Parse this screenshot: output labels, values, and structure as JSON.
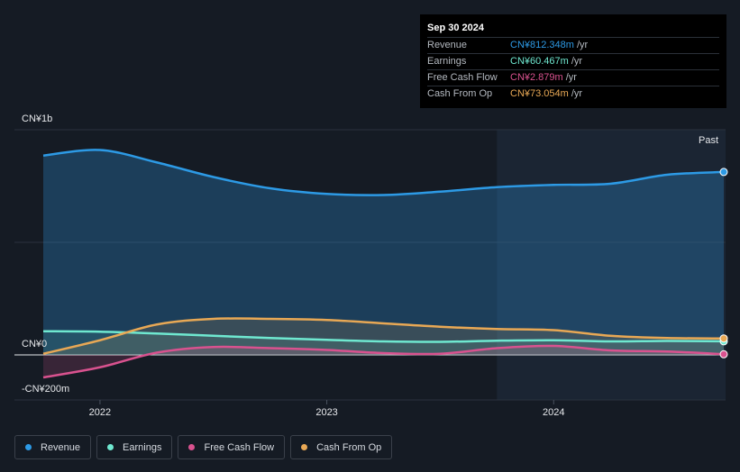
{
  "tooltip": {
    "date": "Sep 30 2024",
    "rows": [
      {
        "label": "Revenue",
        "value": "CN¥812.348m",
        "unit": "/yr",
        "color": "#2d9ae5"
      },
      {
        "label": "Earnings",
        "value": "CN¥60.467m",
        "unit": "/yr",
        "color": "#6fe8d0"
      },
      {
        "label": "Free Cash Flow",
        "value": "CN¥2.879m",
        "unit": "/yr",
        "color": "#d9528f"
      },
      {
        "label": "Cash From Op",
        "value": "CN¥73.054m",
        "unit": "/yr",
        "color": "#e8a855"
      }
    ]
  },
  "axis": {
    "y_top": "CN¥1b",
    "y_zero": "CN¥0",
    "y_bottom": "-CN¥200m",
    "past": "Past"
  },
  "legend": [
    {
      "label": "Revenue",
      "color": "#2d9ae5"
    },
    {
      "label": "Earnings",
      "color": "#6fe8d0"
    },
    {
      "label": "Free Cash Flow",
      "color": "#d9528f"
    },
    {
      "label": "Cash From Op",
      "color": "#e8a855"
    }
  ],
  "chart_data": {
    "type": "line",
    "xlabel": "",
    "ylabel": "",
    "x_ticks": [
      "2022",
      "2023",
      "2024"
    ],
    "ylim": [
      -200,
      1000
    ],
    "y_unit": "CN¥m",
    "past_region_start": 2023.75,
    "series": [
      {
        "name": "Revenue",
        "color": "#2d9ae5",
        "x": [
          2021.75,
          2022.0,
          2022.25,
          2022.5,
          2022.75,
          2023.0,
          2023.25,
          2023.5,
          2023.75,
          2024.0,
          2024.25,
          2024.5,
          2024.75
        ],
        "y": [
          885,
          910,
          855,
          790,
          740,
          715,
          710,
          725,
          745,
          755,
          760,
          800,
          812.348
        ]
      },
      {
        "name": "Earnings",
        "color": "#6fe8d0",
        "x": [
          2021.75,
          2022.0,
          2022.25,
          2022.5,
          2022.75,
          2023.0,
          2023.25,
          2023.5,
          2023.75,
          2024.0,
          2024.25,
          2024.5,
          2024.75
        ],
        "y": [
          105,
          103,
          95,
          85,
          75,
          67,
          60,
          58,
          63,
          65,
          60,
          62,
          60.467
        ]
      },
      {
        "name": "Free Cash Flow",
        "color": "#d9528f",
        "x": [
          2021.75,
          2022.0,
          2022.25,
          2022.5,
          2022.75,
          2023.0,
          2023.25,
          2023.5,
          2023.75,
          2024.0,
          2024.25,
          2024.5,
          2024.75
        ],
        "y": [
          -100,
          -55,
          10,
          35,
          30,
          22,
          8,
          5,
          30,
          40,
          20,
          15,
          2.879
        ]
      },
      {
        "name": "Cash From Op",
        "color": "#e8a855",
        "x": [
          2021.75,
          2022.0,
          2022.25,
          2022.5,
          2022.75,
          2023.0,
          2023.25,
          2023.5,
          2023.75,
          2024.0,
          2024.25,
          2024.5,
          2024.75
        ],
        "y": [
          5,
          65,
          135,
          160,
          160,
          155,
          140,
          125,
          115,
          110,
          85,
          75,
          73.054
        ]
      }
    ]
  }
}
